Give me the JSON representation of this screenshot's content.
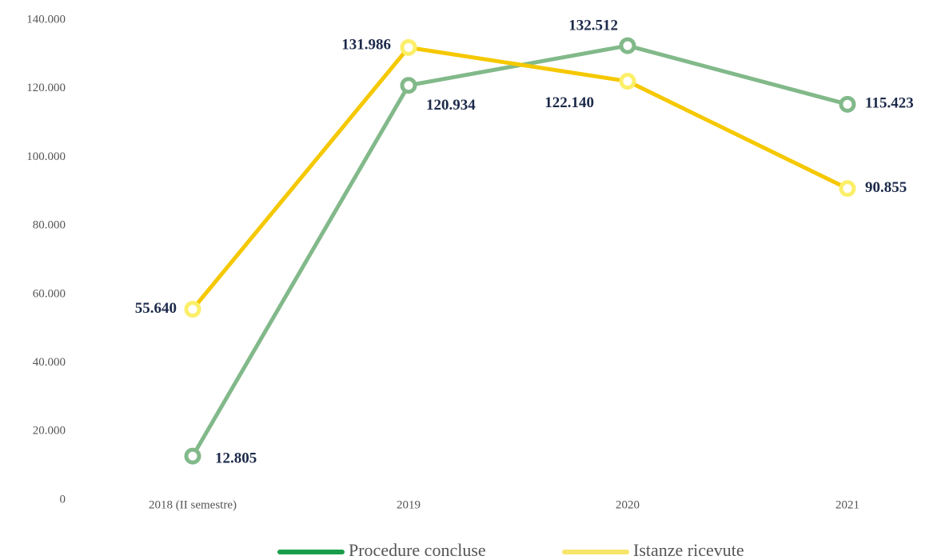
{
  "chart_data": {
    "type": "line",
    "categories": [
      "2018 (II semestre)",
      "2019",
      "2020",
      "2021"
    ],
    "series": [
      {
        "name": "Procedure concluse",
        "color": "#82b98a",
        "marker_color": "#82b98a",
        "legend_color": "#1a9e4a",
        "values": [
          12805,
          120934,
          132512,
          115423
        ],
        "value_labels": [
          "12.805",
          "120.934",
          "132.512",
          "115.423"
        ]
      },
      {
        "name": "Istanze ricevute",
        "color": "#f5c800",
        "marker_color": "#fbef6a",
        "legend_color": "#f7e46a",
        "values": [
          55640,
          131986,
          122140,
          90855
        ],
        "value_labels": [
          "55.640",
          "131.986",
          "122.140",
          "90.855"
        ]
      }
    ],
    "ylim": [
      0,
      140000
    ],
    "yticks": [
      0,
      {
        "value": 20000,
        "label": "20.000"
      },
      {
        "value": 40000,
        "label": "40.000"
      },
      {
        "value": 60000,
        "label": "60.000"
      },
      {
        "value": 80000,
        "label": "80.000"
      },
      {
        "value": 100000,
        "label": "100.000"
      },
      {
        "value": 120000,
        "label": "120.000"
      },
      {
        "value": 140000,
        "label": "140.000"
      }
    ],
    "grid": false
  }
}
